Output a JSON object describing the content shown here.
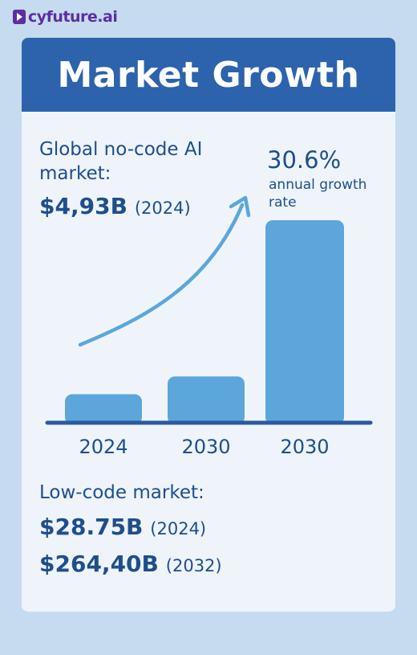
{
  "brand": {
    "name": "cyfuture.ai"
  },
  "header": {
    "title": "Market Growth"
  },
  "global": {
    "label": "Global no-code AI market:",
    "value": "$4,93B",
    "year": "(2024)"
  },
  "growth": {
    "rate": "30.6%",
    "caption": "annual growth rate"
  },
  "lowcode": {
    "label": "Low-code market:",
    "value_2024": "$28.75B",
    "year_2024": "(2024)",
    "value_2032": "$264,40B",
    "year_2032": "(2032)"
  },
  "colors": {
    "header": "#2c63ac",
    "bar": "#5ca6dc",
    "baseline": "#2c5a9e",
    "arrow": "#5ca6dc",
    "text": "#1f4e8c"
  },
  "chart_data": {
    "type": "bar",
    "categories": [
      "2024",
      "2030",
      "2030"
    ],
    "values": [
      4.93,
      8.0,
      35.0
    ],
    "title": "",
    "xlabel": "",
    "ylabel": "",
    "ylim": [
      0,
      35
    ],
    "grid": false,
    "legend": "none"
  }
}
